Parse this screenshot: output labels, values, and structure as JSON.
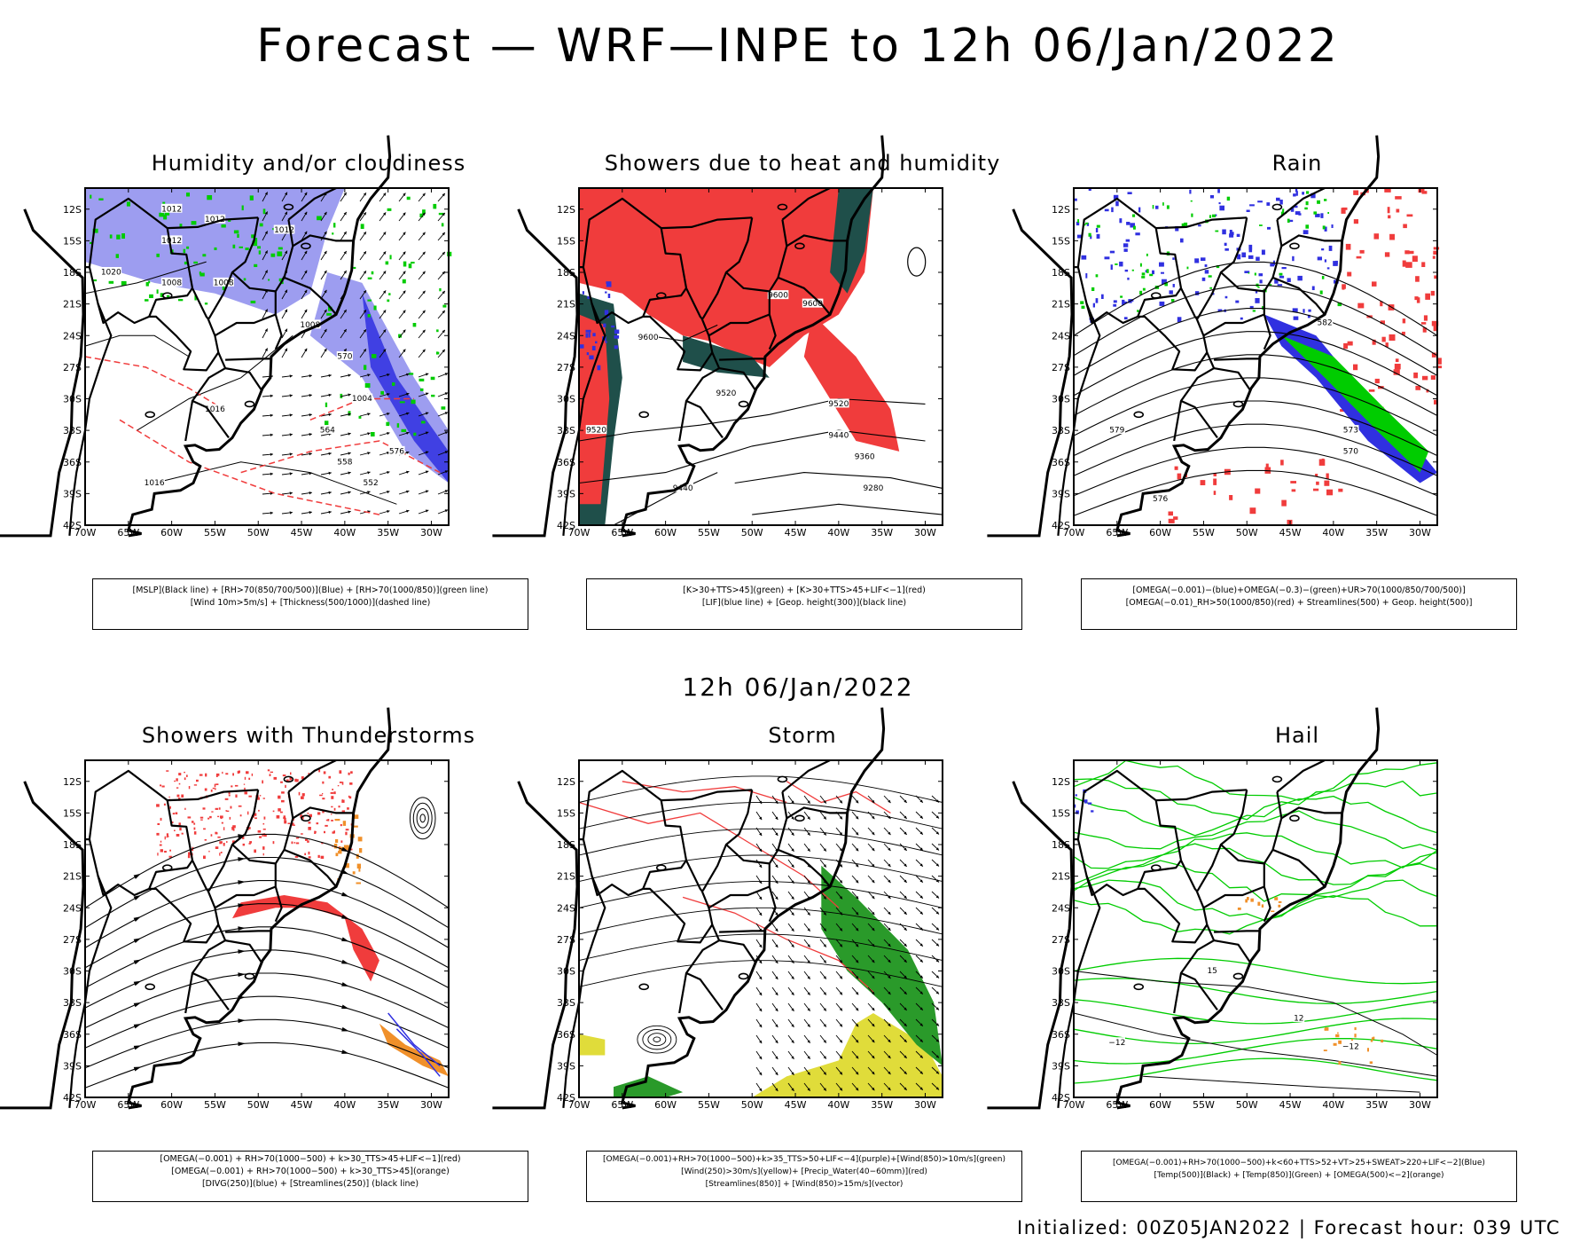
{
  "title": "Forecast — WRF—INPE to 12h 06/Jan/2022",
  "mid_title": "12h 06/Jan/2022",
  "footer": "Initialized: 00Z05JAN2022 | Forecast hour: 039 UTC",
  "axes": {
    "lat_labels": [
      "12S",
      "15S",
      "18S",
      "21S",
      "24S",
      "27S",
      "30S",
      "33S",
      "36S",
      "39S",
      "42S"
    ],
    "lon_labels": [
      "70W",
      "65W",
      "60W",
      "55W",
      "50W",
      "45W",
      "40W",
      "35W",
      "30W"
    ]
  },
  "panels": [
    {
      "title": "Humidity and/or cloudiness",
      "legend": [
        "[MSLP](Black line) + [RH>70(850/700/500)](Blue) + [RH>70(1000/850)](green line)",
        "[Wind 10m>5m/s] + [Thickness(500/1000)](dashed line)"
      ],
      "contour_labels": [
        "1012",
        "1012",
        "1012",
        "1012",
        "1008",
        "1008",
        "1016",
        "1016",
        "1004",
        "576",
        "570",
        "564",
        "558",
        "552",
        "1020",
        "1008"
      ]
    },
    {
      "title": "Showers due to heat and humidity",
      "legend": [
        "[K>30+TTS>45](green) + [K>30+TTS>45+LIF<−1](red)",
        "[LIF](blue line) + [Geop. height(300)](black line)"
      ],
      "contour_labels": [
        "9600",
        "9600",
        "9600",
        "9520",
        "9520",
        "9440",
        "9360",
        "9280",
        "9440",
        "9520"
      ]
    },
    {
      "title": "Rain",
      "legend": [
        "[OMEGA(−0.001)−(blue)+OMEGA(−0.3)−(green)+UR>70(1000/850/700/500)]",
        "[OMEGA(−0.01)_RH>50(1000/850)(red) + Streamlines(500) + Geop. height(500)]"
      ],
      "contour_labels": [
        "579",
        "576",
        "573",
        "570",
        "582"
      ]
    },
    {
      "title": "Showers with Thunderstorms",
      "legend": [
        "[OMEGA(−0.001) + RH>70(1000−500) + k>30_TTS>45+LIF<−1](red)",
        "[OMEGA(−0.001) + RH>70(1000−500) + k>30_TTS>45](orange)",
        "[DIVG(250)](blue) + [Streamlines(250)] (black line)"
      ],
      "contour_labels": []
    },
    {
      "title": "Storm",
      "legend": [
        "[OMEGA(−0.001)+RH>70(1000−500)+k>35_TTS>50+LIF<−4](purple)+[Wind(850)>10m/s](green)",
        "[Wind(250)>30m/s](yellow)+ [Precip_Water(40−60mm)](red)",
        "[Streamlines(850)] + [Wind(850)>15m/s](vector)"
      ],
      "contour_labels": []
    },
    {
      "title": "Hail",
      "legend": [
        "[OMEGA(−0.001)+RH>70(1000−500)+k<60+TTS>52+VT>25+SWEAT>220+LIF<−2](Blue)",
        "[Temp(500)](Black) + [Temp(850)](Green) + [OMEGA(500)<−2](orange)"
      ],
      "contour_labels": [
        "−12",
        "−12",
        "12",
        "15"
      ]
    }
  ],
  "colors": {
    "blue_fill": "#9d9df0",
    "deep_blue": "#3030e0",
    "green": "#00cc00",
    "red": "#f03c3c",
    "dark_teal": "#1f4f4a",
    "orange": "#f0902a",
    "yellow": "#e0dc3a",
    "purple": "#cc33cc"
  }
}
